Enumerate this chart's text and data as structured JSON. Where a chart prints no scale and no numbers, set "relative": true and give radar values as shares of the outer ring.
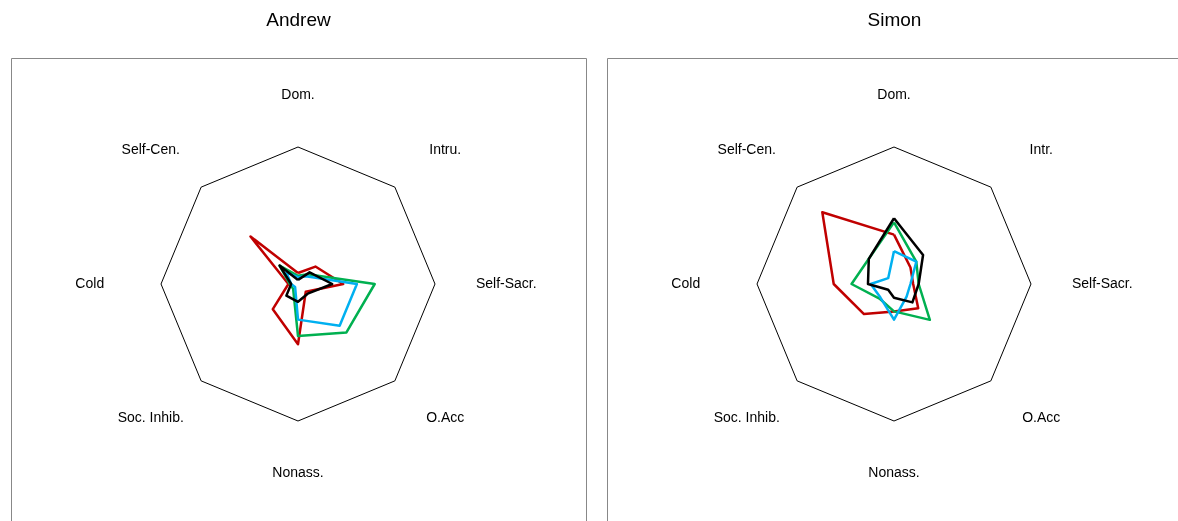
{
  "chart_data": [
    {
      "type": "radar",
      "title": "Andrew",
      "relative": true,
      "categories": [
        "Dom.",
        "Intru.",
        "Self-Sacr.",
        "O.Acc",
        "Nonass.",
        "Soc. Inhib.",
        "Cold",
        "Self-Cen."
      ],
      "series": [
        {
          "color": "#c00000",
          "values": [
            0.08,
            0.18,
            0.33,
            0.08,
            0.44,
            0.26,
            0.07,
            0.49
          ]
        },
        {
          "color": "#00b050",
          "values": [
            0.06,
            0.1,
            0.56,
            0.5,
            0.38,
            0.05,
            0.06,
            0.19
          ]
        },
        {
          "color": "#00b0f0",
          "values": [
            0.05,
            0.08,
            0.43,
            0.43,
            0.26,
            0.03,
            0.05,
            0.12
          ]
        },
        {
          "color": "#000000",
          "values": [
            0.03,
            0.12,
            0.25,
            0.1,
            0.13,
            0.12,
            0.05,
            0.19
          ]
        }
      ]
    },
    {
      "type": "radar",
      "title": "Simon",
      "relative": true,
      "categories": [
        "Dom.",
        "Intr.",
        "Self-Sacr.",
        "O.Acc",
        "Nonass.",
        "Soc. Inhib.",
        "Cold",
        "Self-Cen."
      ],
      "series": [
        {
          "color": "#c00000",
          "values": [
            0.36,
            0.17,
            0.14,
            0.25,
            0.2,
            0.31,
            0.44,
            0.74
          ]
        },
        {
          "color": "#00b050",
          "values": [
            0.45,
            0.23,
            0.18,
            0.37,
            0.2,
            0.15,
            0.31,
            0.26
          ]
        },
        {
          "color": "#00b0f0",
          "values": [
            0.24,
            0.23,
            0.12,
            0.13,
            0.26,
            0.14,
            0.17,
            0.06
          ]
        },
        {
          "color": "#000000",
          "values": [
            0.48,
            0.3,
            0.18,
            0.19,
            0.1,
            0.06,
            0.19,
            0.26
          ]
        }
      ]
    }
  ]
}
